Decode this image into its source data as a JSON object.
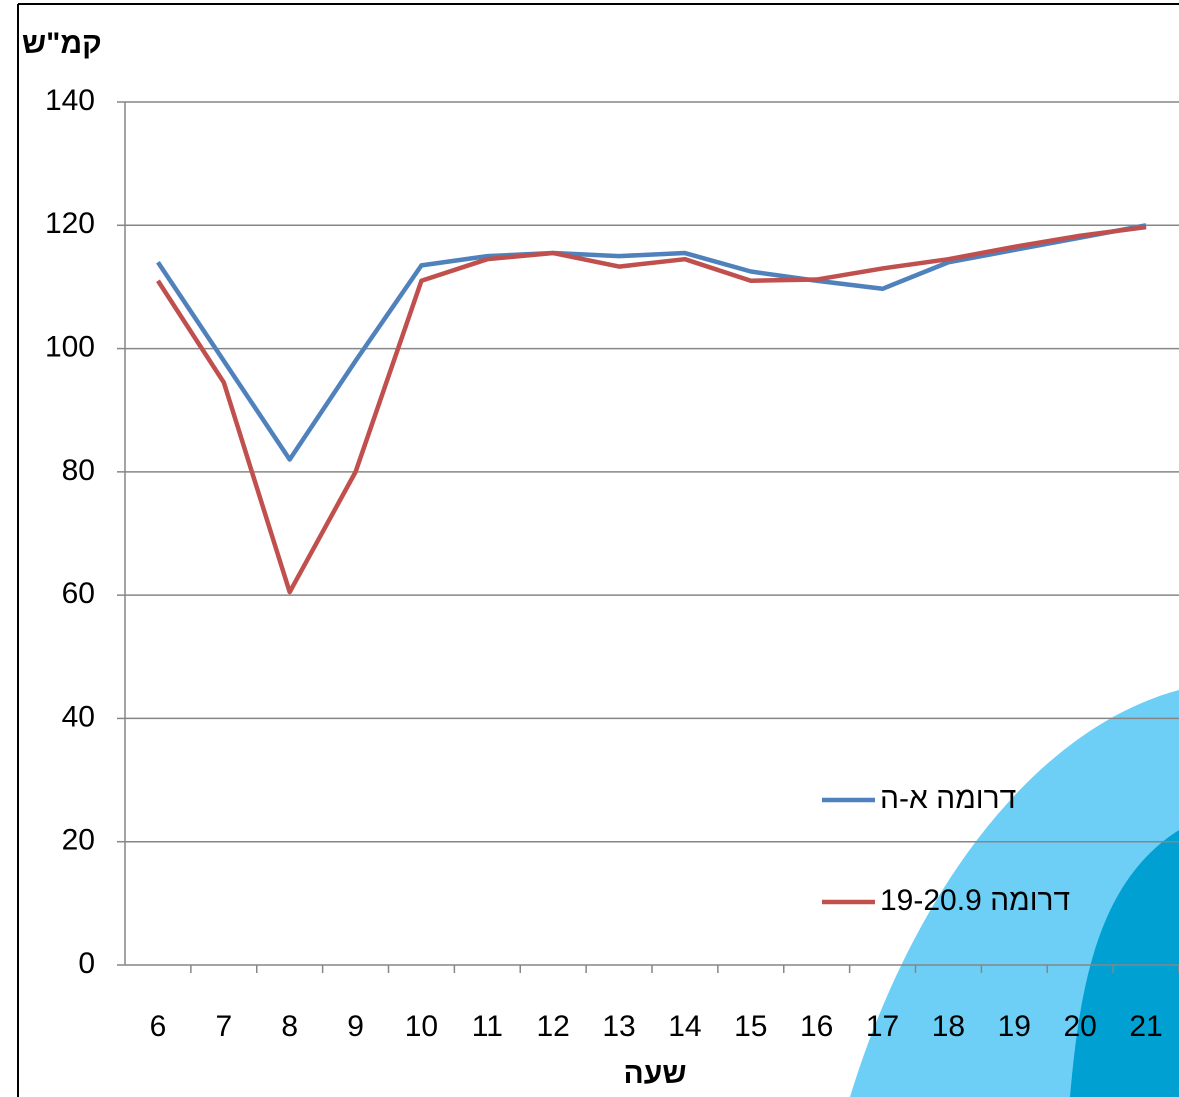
{
  "chart_data": {
    "type": "line",
    "y_label": "קמ\"ש",
    "x_label": "שעה",
    "categories": [
      "6",
      "7",
      "8",
      "9",
      "10",
      "11",
      "12",
      "13",
      "14",
      "15",
      "16",
      "17",
      "18",
      "19",
      "20",
      "21"
    ],
    "series": [
      {
        "name": "דרומה א-ה",
        "color": "#4f81bd",
        "values": [
          114,
          98,
          82,
          98,
          113.5,
          115,
          115.5,
          115,
          115.5,
          112.5,
          111,
          109.7,
          114,
          116,
          118,
          120
        ]
      },
      {
        "name": "דרומה 19-20.9",
        "color": "#c0504d",
        "values": [
          111,
          94.5,
          60.5,
          80,
          111,
          114.5,
          115.5,
          113.3,
          114.5,
          111,
          111.2,
          113,
          114.5,
          116.5,
          118.3,
          119.7
        ]
      }
    ],
    "ylim": [
      0,
      140
    ],
    "yticks": [
      0,
      20,
      40,
      60,
      80,
      100,
      120,
      140
    ],
    "grid": true,
    "legend": "lower-right"
  }
}
